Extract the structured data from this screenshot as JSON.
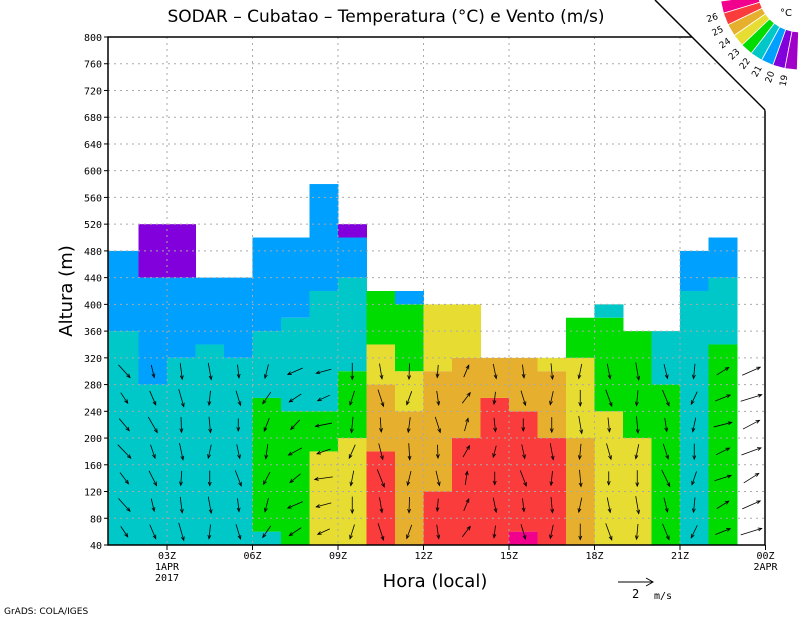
{
  "chart_data": {
    "type": "heatmap",
    "title": "SODAR – Cubatao – Temperatura (°C) e Vento (m/s)",
    "xlabel": "Hora (local)",
    "ylabel": "Altura (m)",
    "footer": "GrADS: COLA/IGES",
    "xlim_hours": [
      0.93,
      24
    ],
    "ylim": [
      40,
      800
    ],
    "grid": true,
    "yticks": [
      40,
      80,
      120,
      160,
      200,
      240,
      280,
      320,
      360,
      400,
      440,
      480,
      520,
      560,
      600,
      640,
      680,
      720,
      760,
      800
    ],
    "xticks": [
      {
        "hour": 3,
        "label": "03Z",
        "sub1": "1APR",
        "sub2": "2017"
      },
      {
        "hour": 6,
        "label": "06Z"
      },
      {
        "hour": 9,
        "label": "09Z"
      },
      {
        "hour": 12,
        "label": "12Z"
      },
      {
        "hour": 15,
        "label": "15Z"
      },
      {
        "hour": 18,
        "label": "18Z"
      },
      {
        "hour": 21,
        "label": "21Z"
      },
      {
        "hour": 24,
        "label": "00Z",
        "sub1": "2APR"
      }
    ],
    "vector_key": {
      "value": "2",
      "unit": "m/s"
    },
    "colorbar": {
      "unit": "°C",
      "classes": [
        {
          "id": "27",
          "color": "#f0008c"
        },
        {
          "id": "26",
          "color": "#fa3c3c",
          "label": "26"
        },
        {
          "id": "25",
          "color": "#e6af2d",
          "label": "25"
        },
        {
          "id": "24",
          "color": "#e6dc32",
          "label": "24"
        },
        {
          "id": "23",
          "color": "#00dc00",
          "label": "23"
        },
        {
          "id": "22",
          "color": "#00c8c8",
          "label": "22"
        },
        {
          "id": "21",
          "color": "#00a0ff",
          "label": "21"
        },
        {
          "id": "20",
          "color": "#8200dc",
          "label": "20"
        },
        {
          "id": "19",
          "color": "#a000c8",
          "label": "19"
        }
      ]
    },
    "temperature_columns": [
      {
        "hour_start": 1,
        "bands": [
          [
            360,
            "22"
          ],
          [
            480,
            "21"
          ]
        ]
      },
      {
        "hour_start": 2,
        "bands": [
          [
            280,
            "22"
          ],
          [
            440,
            "21"
          ],
          [
            520,
            "20"
          ]
        ]
      },
      {
        "hour_start": 3,
        "bands": [
          [
            320,
            "22"
          ],
          [
            440,
            "21"
          ],
          [
            520,
            "20"
          ]
        ]
      },
      {
        "hour_start": 4,
        "bands": [
          [
            340,
            "22"
          ],
          [
            440,
            "21"
          ]
        ]
      },
      {
        "hour_start": 5,
        "bands": [
          [
            320,
            "22"
          ],
          [
            440,
            "21"
          ]
        ]
      },
      {
        "hour_start": 6,
        "bands": [
          [
            60,
            "22"
          ],
          [
            260,
            "23"
          ],
          [
            360,
            "22"
          ],
          [
            500,
            "21"
          ]
        ]
      },
      {
        "hour_start": 7,
        "bands": [
          [
            240,
            "23"
          ],
          [
            380,
            "22"
          ],
          [
            500,
            "21"
          ]
        ]
      },
      {
        "hour_start": 8,
        "bands": [
          [
            180,
            "24"
          ],
          [
            240,
            "23"
          ],
          [
            420,
            "22"
          ],
          [
            580,
            "21"
          ]
        ]
      },
      {
        "hour_start": 9,
        "bands": [
          [
            200,
            "24"
          ],
          [
            300,
            "23"
          ],
          [
            440,
            "22"
          ],
          [
            500,
            "21"
          ],
          [
            520,
            "20"
          ]
        ]
      },
      {
        "hour_start": 10,
        "bands": [
          [
            180,
            "26"
          ],
          [
            280,
            "25"
          ],
          [
            340,
            "24"
          ],
          [
            420,
            "23"
          ]
        ]
      },
      {
        "hour_start": 11,
        "bands": [
          [
            240,
            "25"
          ],
          [
            300,
            "24"
          ],
          [
            400,
            "23"
          ],
          [
            420,
            "21"
          ]
        ]
      },
      {
        "hour_start": 12,
        "bands": [
          [
            120,
            "26"
          ],
          [
            300,
            "25"
          ],
          [
            400,
            "24"
          ]
        ]
      },
      {
        "hour_start": 13,
        "bands": [
          [
            200,
            "26"
          ],
          [
            320,
            "25"
          ],
          [
            400,
            "24"
          ]
        ]
      },
      {
        "hour_start": 14,
        "bands": [
          [
            260,
            "26"
          ],
          [
            320,
            "25"
          ]
        ]
      },
      {
        "hour_start": 15,
        "bands": [
          [
            60,
            "27"
          ],
          [
            240,
            "26"
          ],
          [
            320,
            "25"
          ]
        ]
      },
      {
        "hour_start": 16,
        "bands": [
          [
            200,
            "26"
          ],
          [
            300,
            "25"
          ],
          [
            320,
            "24"
          ]
        ]
      },
      {
        "hour_start": 17,
        "bands": [
          [
            200,
            "25"
          ],
          [
            320,
            "24"
          ],
          [
            380,
            "23"
          ]
        ]
      },
      {
        "hour_start": 18,
        "bands": [
          [
            240,
            "24"
          ],
          [
            380,
            "23"
          ],
          [
            400,
            "22"
          ]
        ]
      },
      {
        "hour_start": 19,
        "bands": [
          [
            200,
            "24"
          ],
          [
            360,
            "23"
          ]
        ]
      },
      {
        "hour_start": 20,
        "bands": [
          [
            280,
            "23"
          ],
          [
            360,
            "22"
          ]
        ]
      },
      {
        "hour_start": 21,
        "bands": [
          [
            420,
            "22"
          ],
          [
            480,
            "21"
          ]
        ]
      },
      {
        "hour_start": 22,
        "bands": [
          [
            340,
            "23"
          ],
          [
            440,
            "22"
          ],
          [
            500,
            "21"
          ]
        ]
      }
    ],
    "wind_levels": [
      60,
      100,
      140,
      180,
      220,
      260,
      300
    ],
    "wind_hourly_uv": [
      [
        1,
        -1.2
      ],
      [
        0.6,
        -1.4
      ],
      [
        0.2,
        -1.6
      ],
      [
        0,
        -1.5
      ],
      [
        0.3,
        -1.4
      ],
      [
        -0.5,
        -1.3
      ],
      [
        -1.2,
        -0.8
      ],
      [
        -1.5,
        -0.4
      ],
      [
        -0.3,
        -1.5
      ],
      [
        0.4,
        -1.6
      ],
      [
        -0.2,
        -1.5
      ],
      [
        0.2,
        -1.4
      ],
      [
        0.5,
        1.2
      ],
      [
        0,
        -1.3
      ],
      [
        0.3,
        -1.4
      ],
      [
        0,
        -1.5
      ],
      [
        0,
        -1.6
      ],
      [
        0.3,
        -1.5
      ],
      [
        0,
        -1.6
      ],
      [
        0.5,
        -1.5
      ],
      [
        -0.3,
        -1.4
      ],
      [
        1.5,
        0.6
      ],
      [
        1.8,
        0.8
      ]
    ]
  }
}
